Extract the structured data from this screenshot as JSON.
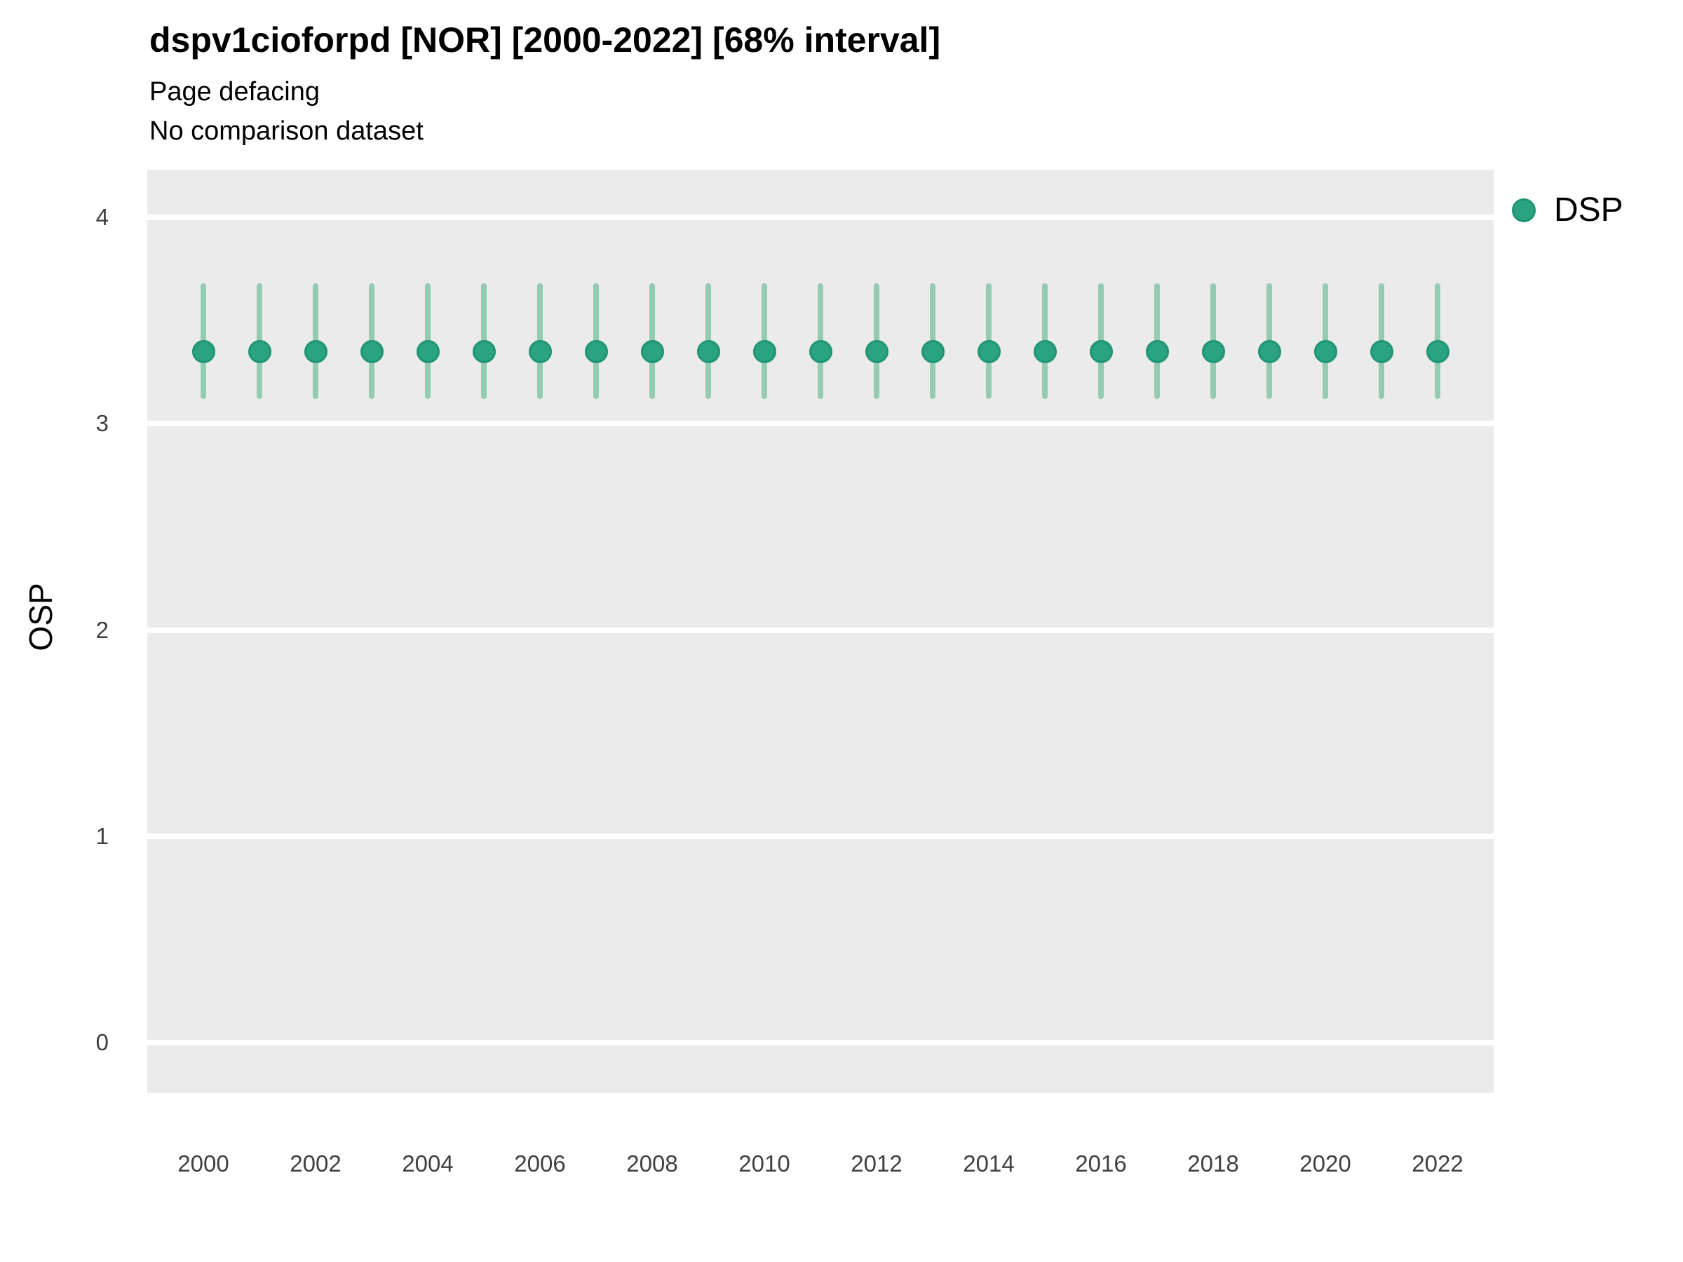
{
  "colors": {
    "point_fill": "#2CA380",
    "point_stroke": "#1F9572",
    "interval_bar": "#93CBB4",
    "panel_bg": "#EBEBEB",
    "grid": "#FFFFFF",
    "tick_text": "#404040",
    "text": "#000000"
  },
  "legend": {
    "label": "DSP"
  },
  "chart_data": {
    "type": "scatter",
    "title": "dspv1cioforpd [NOR] [2000-2022] [68% interval]",
    "subtitle": "Page defacing",
    "caption": "No comparison dataset",
    "xlabel": "",
    "ylabel": "OSP",
    "interval": "68%",
    "xlim": [
      1999,
      2023
    ],
    "ylim": [
      -0.24,
      4.24
    ],
    "y_ticks": [
      0,
      1,
      2,
      3,
      4
    ],
    "x_ticks": [
      2000,
      2002,
      2004,
      2006,
      2008,
      2010,
      2012,
      2014,
      2016,
      2018,
      2020,
      2022
    ],
    "grid": "horizontal-major-only",
    "legend_position": "right-top",
    "series": [
      {
        "name": "DSP",
        "points": [
          {
            "x": 2000,
            "y": 3.35,
            "lo": 3.12,
            "hi": 3.68
          },
          {
            "x": 2001,
            "y": 3.35,
            "lo": 3.12,
            "hi": 3.68
          },
          {
            "x": 2002,
            "y": 3.35,
            "lo": 3.12,
            "hi": 3.68
          },
          {
            "x": 2003,
            "y": 3.35,
            "lo": 3.12,
            "hi": 3.68
          },
          {
            "x": 2004,
            "y": 3.35,
            "lo": 3.12,
            "hi": 3.68
          },
          {
            "x": 2005,
            "y": 3.35,
            "lo": 3.12,
            "hi": 3.68
          },
          {
            "x": 2006,
            "y": 3.35,
            "lo": 3.12,
            "hi": 3.68
          },
          {
            "x": 2007,
            "y": 3.35,
            "lo": 3.12,
            "hi": 3.68
          },
          {
            "x": 2008,
            "y": 3.35,
            "lo": 3.12,
            "hi": 3.68
          },
          {
            "x": 2009,
            "y": 3.35,
            "lo": 3.12,
            "hi": 3.68
          },
          {
            "x": 2010,
            "y": 3.35,
            "lo": 3.12,
            "hi": 3.68
          },
          {
            "x": 2011,
            "y": 3.35,
            "lo": 3.12,
            "hi": 3.68
          },
          {
            "x": 2012,
            "y": 3.35,
            "lo": 3.12,
            "hi": 3.68
          },
          {
            "x": 2013,
            "y": 3.35,
            "lo": 3.12,
            "hi": 3.68
          },
          {
            "x": 2014,
            "y": 3.35,
            "lo": 3.12,
            "hi": 3.68
          },
          {
            "x": 2015,
            "y": 3.35,
            "lo": 3.12,
            "hi": 3.68
          },
          {
            "x": 2016,
            "y": 3.35,
            "lo": 3.12,
            "hi": 3.68
          },
          {
            "x": 2017,
            "y": 3.35,
            "lo": 3.12,
            "hi": 3.68
          },
          {
            "x": 2018,
            "y": 3.35,
            "lo": 3.12,
            "hi": 3.68
          },
          {
            "x": 2019,
            "y": 3.35,
            "lo": 3.12,
            "hi": 3.68
          },
          {
            "x": 2020,
            "y": 3.35,
            "lo": 3.12,
            "hi": 3.68
          },
          {
            "x": 2021,
            "y": 3.35,
            "lo": 3.12,
            "hi": 3.68
          },
          {
            "x": 2022,
            "y": 3.35,
            "lo": 3.12,
            "hi": 3.68
          }
        ]
      }
    ]
  }
}
